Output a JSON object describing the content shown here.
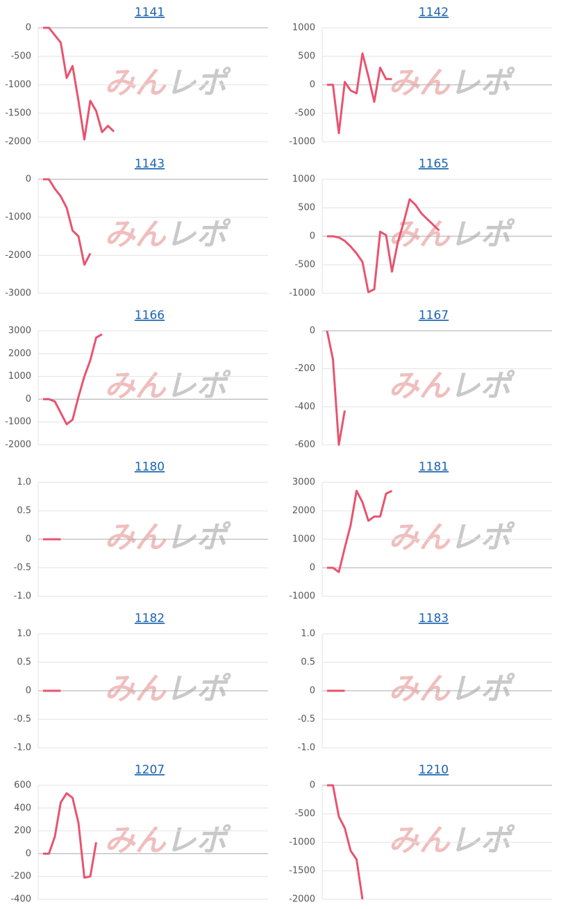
{
  "watermark": [
    "みん",
    "レポ"
  ],
  "chart_data": [
    {
      "type": "line",
      "title": "1141",
      "color": "#e8536f",
      "ylim": [
        -2000,
        0
      ],
      "yticks": [
        0,
        -500,
        -1000,
        -1500,
        -2000
      ],
      "values": [
        0,
        0,
        -130,
        -260,
        -880,
        -670,
        -1280,
        -1960,
        -1280,
        -1460,
        -1830,
        -1720,
        -1820
      ]
    },
    {
      "type": "line",
      "title": "1142",
      "color": "#e8536f",
      "ylim": [
        -1000,
        1000
      ],
      "yticks": [
        1000,
        500,
        0,
        -500,
        -1000
      ],
      "values": [
        0,
        0,
        -850,
        50,
        -100,
        -150,
        550,
        150,
        -300,
        300,
        100,
        100
      ]
    },
    {
      "type": "line",
      "title": "1143",
      "color": "#e8536f",
      "ylim": [
        -3000,
        0
      ],
      "yticks": [
        0,
        -1000,
        -2000,
        -3000
      ],
      "values": [
        0,
        0,
        -250,
        -450,
        -750,
        -1350,
        -1500,
        -2250,
        -1950
      ]
    },
    {
      "type": "line",
      "title": "1165",
      "color": "#e8536f",
      "ylim": [
        -1000,
        1000
      ],
      "yticks": [
        1000,
        500,
        0,
        -500,
        -1000
      ],
      "values": [
        0,
        0,
        -20,
        -80,
        -180,
        -300,
        -450,
        -980,
        -930,
        80,
        20,
        -620,
        -100,
        250,
        650,
        550,
        400,
        300,
        200,
        100
      ]
    },
    {
      "type": "line",
      "title": "1166",
      "color": "#e8536f",
      "ylim": [
        -2000,
        3000
      ],
      "yticks": [
        3000,
        2000,
        1000,
        0,
        -1000,
        -2000
      ],
      "values": [
        0,
        0,
        -100,
        -600,
        -1100,
        -900,
        100,
        1000,
        1700,
        2700,
        2850
      ]
    },
    {
      "type": "line",
      "title": "1167",
      "color": "#e8536f",
      "ylim": [
        -600,
        0
      ],
      "yticks": [
        0,
        -200,
        -400,
        -600
      ],
      "values": [
        0,
        -150,
        -600,
        -420
      ]
    },
    {
      "type": "line",
      "title": "1180",
      "color": "#e8536f",
      "ylim": [
        -1,
        1
      ],
      "yticks": [
        {
          "value": 1,
          "label": "1.0"
        },
        0.5,
        0,
        -0.5,
        {
          "value": -1,
          "label": "-1.0"
        }
      ],
      "values": [
        0,
        0,
        0,
        0
      ]
    },
    {
      "type": "line",
      "title": "1181",
      "color": "#e8536f",
      "ylim": [
        -1000,
        3000
      ],
      "yticks": [
        3000,
        2000,
        1000,
        0,
        -1000
      ],
      "values": [
        0,
        0,
        -150,
        700,
        1500,
        2700,
        2300,
        1650,
        1800,
        1800,
        2600,
        2700
      ]
    },
    {
      "type": "line",
      "title": "1182",
      "color": "#e8536f",
      "ylim": [
        -1,
        1
      ],
      "yticks": [
        {
          "value": 1,
          "label": "1.0"
        },
        0.5,
        0,
        -0.5,
        {
          "value": -1,
          "label": "-1.0"
        }
      ],
      "values": [
        0,
        0,
        0,
        0
      ]
    },
    {
      "type": "line",
      "title": "1183",
      "color": "#e8536f",
      "ylim": [
        -1,
        1
      ],
      "yticks": [
        {
          "value": 1,
          "label": "1.0"
        },
        0.5,
        0,
        -0.5,
        {
          "value": -1,
          "label": "-1.0"
        }
      ],
      "values": [
        0,
        0,
        0,
        0
      ]
    },
    {
      "type": "line",
      "title": "1207",
      "color": "#e8536f",
      "ylim": [
        -400,
        600
      ],
      "yticks": [
        600,
        400,
        200,
        0,
        -200,
        -400
      ],
      "values": [
        0,
        0,
        150,
        450,
        530,
        490,
        270,
        -210,
        -200,
        100
      ]
    },
    {
      "type": "line",
      "title": "1210",
      "color": "#e8536f",
      "ylim": [
        -2000,
        0
      ],
      "yticks": [
        0,
        -500,
        -1000,
        -1500,
        -2000
      ],
      "values": [
        0,
        0,
        -550,
        -750,
        -1150,
        -1300,
        -2000
      ]
    }
  ]
}
